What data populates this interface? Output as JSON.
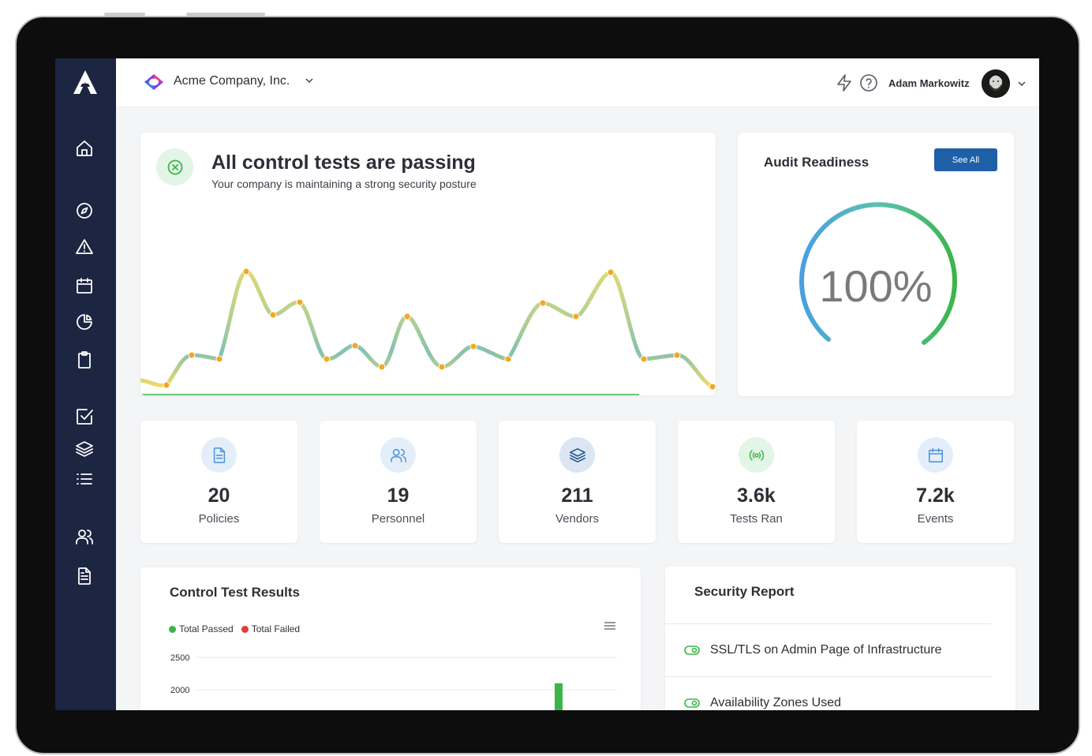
{
  "app": {
    "company_name": "Acme Company, Inc.",
    "user_name": "Adam Markowitz"
  },
  "sidebar": {
    "items": [
      {
        "icon": "home-icon"
      },
      {
        "icon": "compass-icon"
      },
      {
        "icon": "alert-triangle-icon"
      },
      {
        "icon": "calendar-icon"
      },
      {
        "icon": "pie-chart-icon"
      },
      {
        "icon": "clipboard-icon"
      },
      {
        "icon": "check-square-icon"
      },
      {
        "icon": "layers-icon"
      },
      {
        "icon": "list-icon"
      },
      {
        "icon": "users-icon"
      },
      {
        "icon": "document-icon"
      }
    ]
  },
  "topbar": {
    "icons": [
      "lightning-icon",
      "help-icon"
    ]
  },
  "hero": {
    "title": "All control tests are passing",
    "subtitle": "Your company is maintaining a strong security posture"
  },
  "audit": {
    "title": "Audit Readiness",
    "button_label": "See All",
    "percent_text": "100%",
    "percent_value": 100
  },
  "stats": [
    {
      "value": "20",
      "label": "Policies",
      "icon": "document-icon",
      "color": "#4a90d9"
    },
    {
      "value": "19",
      "label": "Personnel",
      "icon": "users-icon",
      "color": "#4a90d9"
    },
    {
      "value": "211",
      "label": "Vendors",
      "icon": "layers-icon",
      "color": "#1c4f8a"
    },
    {
      "value": "3.6k",
      "label": "Tests Ran",
      "icon": "broadcast-icon",
      "color": "#3bb54a"
    },
    {
      "value": "7.2k",
      "label": "Events",
      "icon": "calendar-icon",
      "color": "#4a90d9"
    }
  ],
  "control_tests": {
    "title": "Control Test Results",
    "legend": [
      {
        "name": "Total Passed",
        "color": "#3bb54a"
      },
      {
        "name": "Total Failed",
        "color": "#e03c3c"
      }
    ]
  },
  "chart_data": {
    "type": "bar",
    "title": "Control Test Results",
    "series": [
      {
        "name": "Total Passed",
        "values": [
          2100
        ]
      },
      {
        "name": "Total Failed",
        "values": [
          0
        ]
      }
    ],
    "y_ticks": [
      "2500",
      "2000"
    ],
    "ylim": [
      0,
      2500
    ]
  },
  "security_report": {
    "title": "Security Report",
    "items": [
      {
        "label": "SSL/TLS on Admin Page of Infrastructure"
      },
      {
        "label": "Availability Zones Used"
      }
    ]
  },
  "colors": {
    "sidebar_bg": "#1c2541",
    "accent_blue": "#1f5fa8",
    "success_green": "#3bb54a"
  }
}
